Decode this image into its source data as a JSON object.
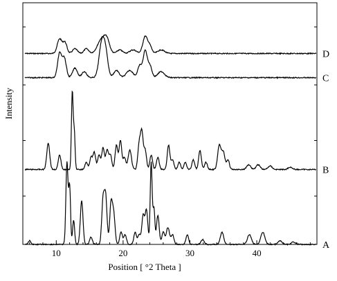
{
  "chart_data": {
    "type": "line",
    "xlabel": "Position [ °2 Theta ]",
    "ylabel": "Intensity",
    "xlim": [
      5,
      49
    ],
    "x_ticks": [
      "10",
      "20",
      "30",
      "40"
    ],
    "x_tick_values": [
      10,
      20,
      30,
      40
    ],
    "grid": false,
    "legend": "none",
    "stroke_color": "#000000",
    "series": [
      {
        "name": "D",
        "baseline": 0.21,
        "peaks": [
          [
            10.5,
            0.06,
            0.35
          ],
          [
            11.3,
            0.045,
            0.3
          ],
          [
            12.8,
            0.02,
            0.35
          ],
          [
            14.5,
            0.02,
            0.35
          ],
          [
            16.8,
            0.06,
            0.6
          ],
          [
            17.6,
            0.045,
            0.4
          ],
          [
            19.5,
            0.015,
            0.4
          ],
          [
            21.5,
            0.015,
            0.5
          ],
          [
            23.3,
            0.07,
            0.35
          ],
          [
            24.0,
            0.03,
            0.3
          ],
          [
            25.7,
            0.015,
            0.5
          ]
        ]
      },
      {
        "name": "C",
        "baseline": 0.31,
        "peaks": [
          [
            10.5,
            0.1,
            0.3
          ],
          [
            11.2,
            0.08,
            0.3
          ],
          [
            12.8,
            0.04,
            0.35
          ],
          [
            14.2,
            0.025,
            0.35
          ],
          [
            16.8,
            0.14,
            0.4
          ],
          [
            17.4,
            0.09,
            0.35
          ],
          [
            19.0,
            0.03,
            0.4
          ],
          [
            21.0,
            0.03,
            0.5
          ],
          [
            22.5,
            0.05,
            0.3
          ],
          [
            23.3,
            0.11,
            0.3
          ],
          [
            24.0,
            0.05,
            0.3
          ],
          [
            25.7,
            0.025,
            0.5
          ]
        ]
      },
      {
        "name": "B",
        "baseline": 0.69,
        "peaks": [
          [
            8.8,
            0.11,
            0.22
          ],
          [
            10.5,
            0.06,
            0.2
          ],
          [
            12.4,
            0.32,
            0.13
          ],
          [
            12.7,
            0.15,
            0.12
          ],
          [
            14.5,
            0.03,
            0.2
          ],
          [
            15.2,
            0.05,
            0.2
          ],
          [
            15.7,
            0.07,
            0.2
          ],
          [
            16.4,
            0.06,
            0.2
          ],
          [
            17.0,
            0.09,
            0.2
          ],
          [
            17.6,
            0.08,
            0.2
          ],
          [
            18.1,
            0.06,
            0.2
          ],
          [
            19.0,
            0.1,
            0.2
          ],
          [
            19.6,
            0.12,
            0.2
          ],
          [
            20.2,
            0.05,
            0.2
          ],
          [
            21.0,
            0.08,
            0.25
          ],
          [
            22.4,
            0.1,
            0.2
          ],
          [
            22.8,
            0.15,
            0.2
          ],
          [
            23.3,
            0.08,
            0.2
          ],
          [
            24.2,
            0.06,
            0.2
          ],
          [
            25.2,
            0.05,
            0.2
          ],
          [
            26.8,
            0.1,
            0.2
          ],
          [
            27.4,
            0.04,
            0.2
          ],
          [
            28.4,
            0.03,
            0.2
          ],
          [
            29.3,
            0.03,
            0.2
          ],
          [
            30.5,
            0.04,
            0.2
          ],
          [
            31.5,
            0.08,
            0.2
          ],
          [
            32.4,
            0.03,
            0.2
          ],
          [
            34.4,
            0.1,
            0.25
          ],
          [
            35.0,
            0.07,
            0.25
          ],
          [
            35.7,
            0.04,
            0.2
          ],
          [
            38.8,
            0.02,
            0.3
          ],
          [
            40.2,
            0.02,
            0.3
          ],
          [
            42.0,
            0.015,
            0.3
          ],
          [
            45.0,
            0.01,
            0.3
          ]
        ]
      },
      {
        "name": "A",
        "baseline": 1.0,
        "peaks": [
          [
            6.0,
            0.015,
            0.2
          ],
          [
            11.6,
            0.34,
            0.16
          ],
          [
            12.0,
            0.24,
            0.14
          ],
          [
            12.6,
            0.1,
            0.15
          ],
          [
            13.8,
            0.18,
            0.2
          ],
          [
            15.2,
            0.03,
            0.2
          ],
          [
            17.0,
            0.18,
            0.2
          ],
          [
            17.4,
            0.19,
            0.2
          ],
          [
            18.2,
            0.17,
            0.2
          ],
          [
            18.6,
            0.12,
            0.2
          ],
          [
            19.7,
            0.05,
            0.2
          ],
          [
            20.3,
            0.04,
            0.2
          ],
          [
            21.8,
            0.05,
            0.2
          ],
          [
            22.4,
            0.04,
            0.2
          ],
          [
            23.0,
            0.12,
            0.2
          ],
          [
            23.5,
            0.14,
            0.2
          ],
          [
            24.2,
            0.34,
            0.14
          ],
          [
            24.6,
            0.15,
            0.15
          ],
          [
            25.2,
            0.12,
            0.2
          ],
          [
            26.0,
            0.05,
            0.2
          ],
          [
            26.7,
            0.07,
            0.25
          ],
          [
            27.4,
            0.04,
            0.2
          ],
          [
            29.6,
            0.04,
            0.2
          ],
          [
            31.9,
            0.02,
            0.25
          ],
          [
            34.8,
            0.05,
            0.25
          ],
          [
            38.9,
            0.04,
            0.3
          ],
          [
            40.9,
            0.05,
            0.3
          ],
          [
            43.5,
            0.015,
            0.3
          ],
          [
            45.5,
            0.01,
            0.3
          ]
        ]
      }
    ]
  }
}
